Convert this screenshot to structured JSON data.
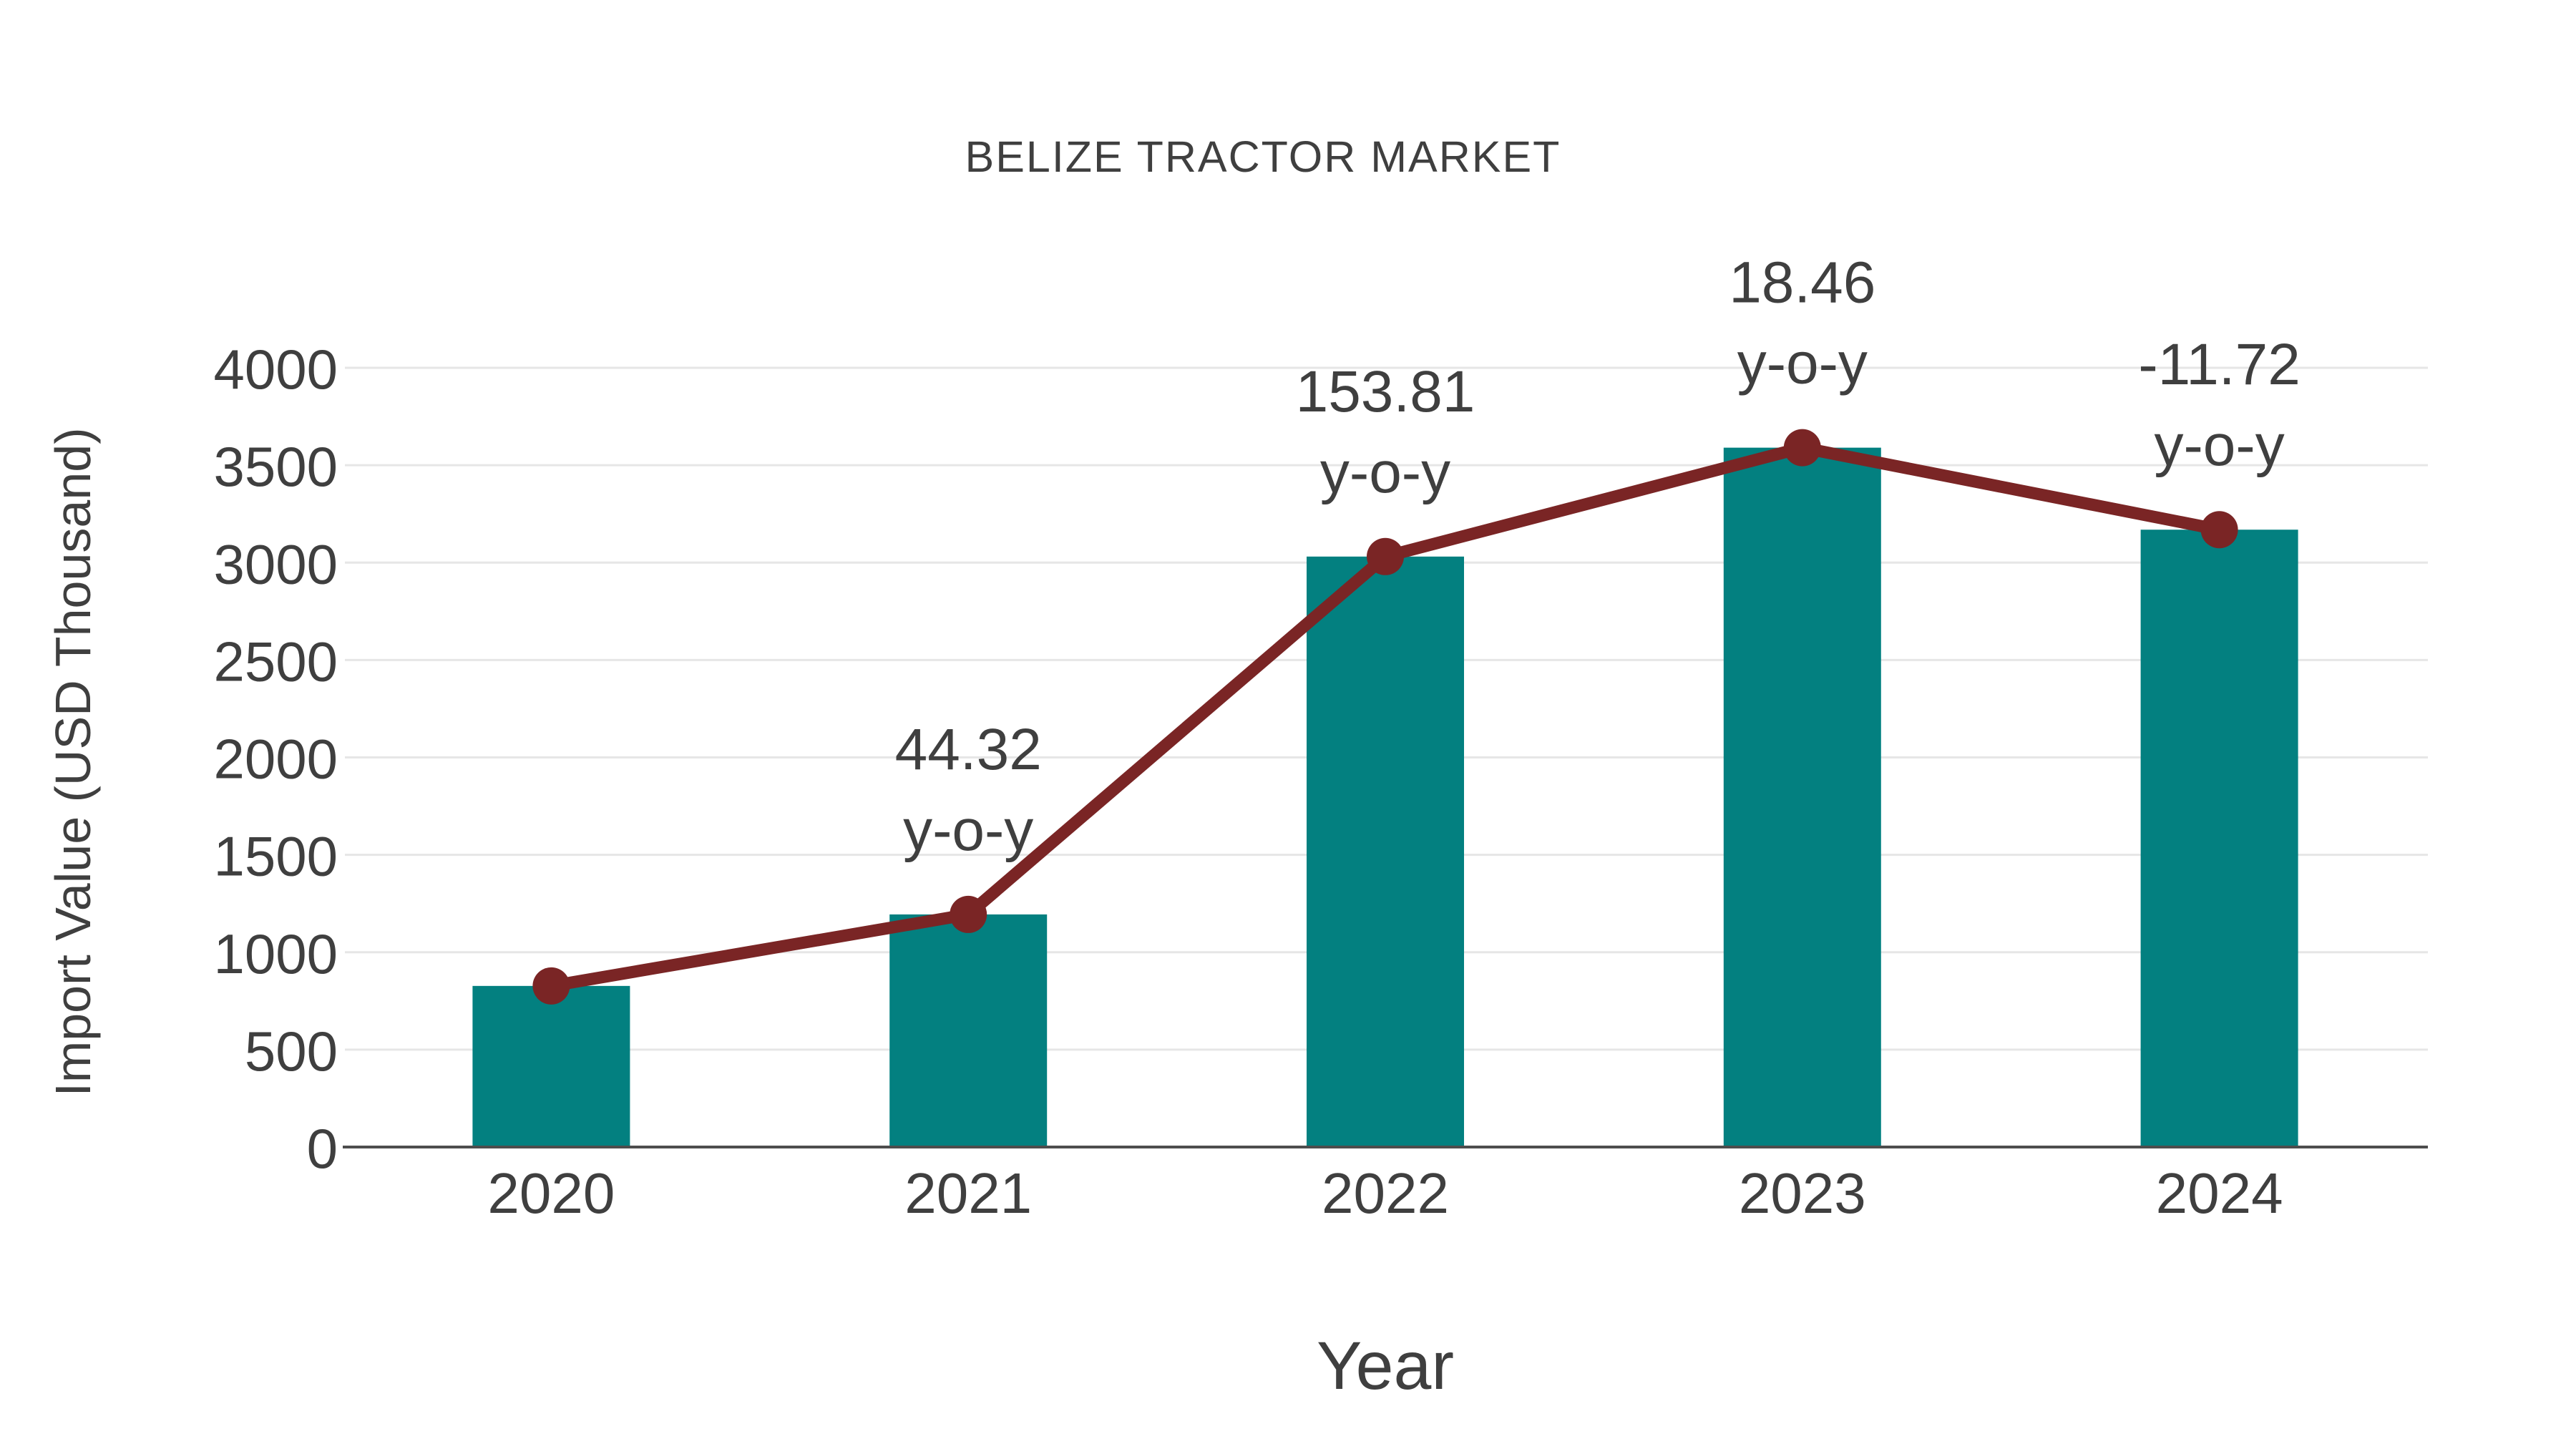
{
  "title": "BELIZE TRACTOR MARKET",
  "chart_data": {
    "type": "bar",
    "title": "BELIZE TRACTOR MARKET",
    "xlabel": "Year",
    "ylabel": "Import Value (USD Thousand)",
    "categories": [
      "2020",
      "2021",
      "2022",
      "2023",
      "2024"
    ],
    "series": [
      {
        "name": "Import Value (USD Thousand)",
        "type": "bar",
        "color": "#038080",
        "values": [
          827,
          1194,
          3031,
          3590,
          3169
        ]
      },
      {
        "name": "y-o-y growth (%)",
        "type": "line",
        "color": "#7A2525",
        "values": [
          827,
          1194,
          3031,
          3590,
          3169
        ],
        "point_labels": [
          null,
          "44.32",
          "153.81",
          "18.46",
          "-11.72"
        ],
        "point_label_suffix": "y-o-y"
      }
    ],
    "ylim": [
      0,
      4000
    ],
    "ytick_step": 500,
    "yticks": [
      0,
      500,
      1000,
      1500,
      2000,
      2500,
      3000,
      3500,
      4000
    ],
    "grid": true,
    "legend_position": "none"
  },
  "colors": {
    "background": "#FFFFFF",
    "text": "#3F3F3F",
    "grid_line": "#E6E6E6",
    "axis_line": "#4D4D4D",
    "bar": "#038080",
    "line": "#7A2525"
  }
}
